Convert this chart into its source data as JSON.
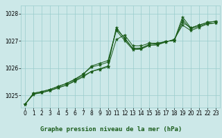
{
  "background_color": "#cce8e8",
  "plot_bg_color": "#cce8e8",
  "grid_color": "#99cccc",
  "line_color": "#1a5c1a",
  "marker_color": "#1a5c1a",
  "title": "Graphe pression niveau de la mer (hPa)",
  "tick_fontsize": 5.5,
  "title_fontsize": 6.5,
  "xlim": [
    -0.5,
    23.5
  ],
  "ylim": [
    1024.55,
    1028.3
  ],
  "yticks": [
    1025,
    1026,
    1027,
    1028
  ],
  "xticks": [
    0,
    1,
    2,
    3,
    4,
    5,
    6,
    7,
    8,
    9,
    10,
    11,
    12,
    13,
    14,
    15,
    16,
    17,
    18,
    19,
    20,
    21,
    22,
    23
  ],
  "series": [
    [
      1024.68,
      1025.05,
      1025.1,
      1025.18,
      1025.28,
      1025.38,
      1025.55,
      1025.72,
      1025.88,
      1025.95,
      1026.05,
      1027.05,
      1027.22,
      1026.82,
      1026.82,
      1026.92,
      1026.92,
      1026.98,
      1027.02,
      1027.68,
      1027.48,
      1027.58,
      1027.68,
      1027.72
    ],
    [
      1024.68,
      1025.08,
      1025.14,
      1025.22,
      1025.32,
      1025.44,
      1025.6,
      1025.78,
      1026.08,
      1026.18,
      1026.28,
      1027.42,
      1027.12,
      1026.72,
      1026.72,
      1026.84,
      1026.86,
      1026.96,
      1027.06,
      1027.58,
      1027.38,
      1027.5,
      1027.62,
      1027.66
    ],
    [
      1024.68,
      1025.04,
      1025.1,
      1025.18,
      1025.28,
      1025.38,
      1025.52,
      1025.68,
      1025.88,
      1025.98,
      1026.08,
      1027.5,
      1027.08,
      1026.72,
      1026.74,
      1026.88,
      1026.9,
      1026.98,
      1027.02,
      1027.88,
      1027.48,
      1027.58,
      1027.68,
      1027.72
    ],
    [
      1024.68,
      1025.08,
      1025.14,
      1025.22,
      1025.34,
      1025.44,
      1025.58,
      1025.78,
      1026.04,
      1026.12,
      1026.22,
      1027.38,
      1027.02,
      1026.68,
      1026.7,
      1026.84,
      1026.86,
      1026.98,
      1027.02,
      1027.78,
      1027.44,
      1027.54,
      1027.64,
      1027.66
    ]
  ]
}
